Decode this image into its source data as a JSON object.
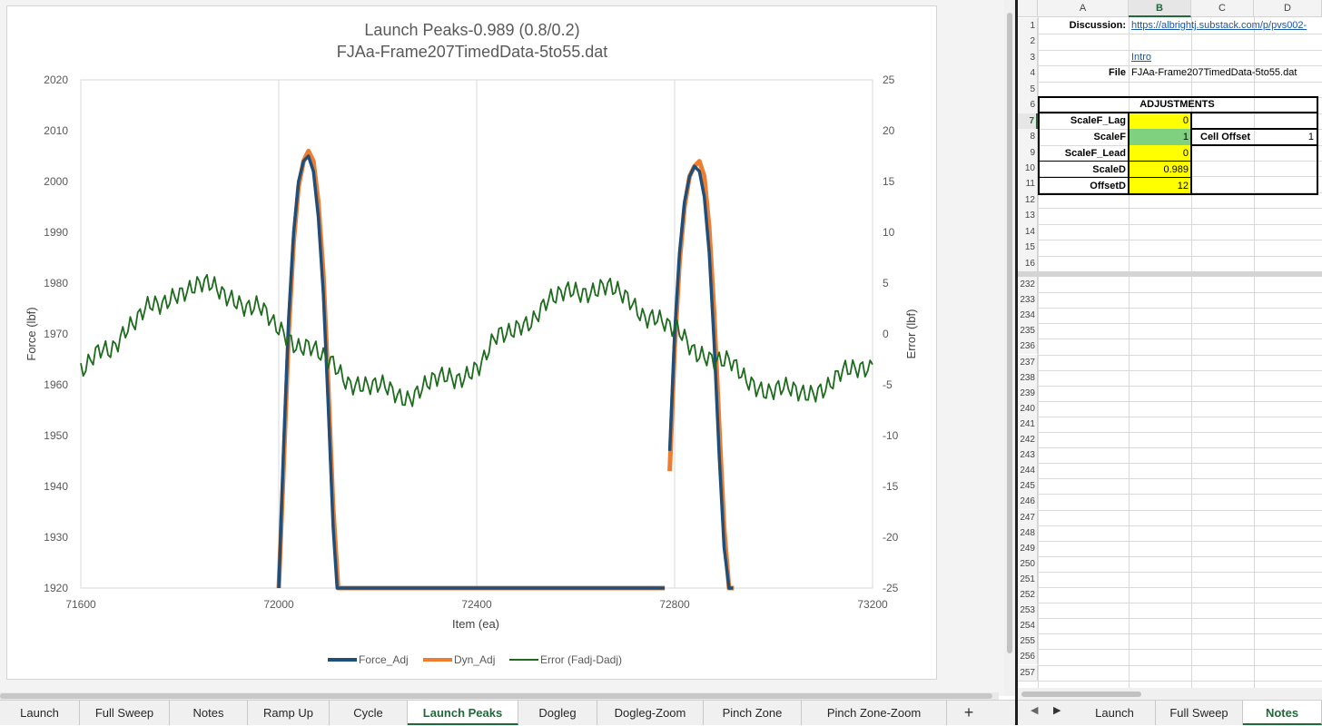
{
  "chart": {
    "title_line1": "Launch Peaks-0.989 (0.8/0.2)",
    "title_line2": "FJAa-Frame207TimedData-5to55.dat",
    "ylabel": "Force (lbf)",
    "y2label": "Error (lbf)",
    "xlabel": "Item (ea)",
    "legend": [
      "Force_Adj",
      "Dyn_Adj",
      "Error (Fadj-Dadj)"
    ],
    "colors": {
      "force": "#1f4e79",
      "dyn": "#ed7d31",
      "error": "#1e6b1e"
    }
  },
  "chart_data": {
    "type": "line",
    "title": "Launch Peaks-0.989 (0.8/0.2) FJAa-Frame207TimedData-5to55.dat",
    "xlabel": "Item (ea)",
    "ylabel": "Force (lbf)",
    "y2label": "Error (lbf)",
    "xlim": [
      71600,
      73200
    ],
    "ylim": [
      1920,
      2020
    ],
    "y2lim": [
      -25,
      25
    ],
    "x_ticks": [
      71600,
      72000,
      72400,
      72800,
      73200
    ],
    "y_ticks": [
      1920,
      1930,
      1940,
      1950,
      1960,
      1970,
      1980,
      1990,
      2000,
      2010,
      2020
    ],
    "y2_ticks": [
      -25,
      -20,
      -15,
      -10,
      -5,
      0,
      5,
      10,
      15,
      20,
      25
    ],
    "grid": "vertical",
    "legend_position": "bottom",
    "series": [
      {
        "name": "Force_Adj",
        "axis": "left",
        "x": [
          72000,
          72010,
          72020,
          72030,
          72040,
          72050,
          72060,
          72070,
          72080,
          72090,
          72100,
          72110,
          72118,
          72780,
          72790,
          72800,
          72810,
          72820,
          72830,
          72840,
          72850,
          72860,
          72870,
          72880,
          72890,
          72900,
          72910,
          72918
        ],
        "y": [
          1920,
          1948,
          1973,
          1990,
          2000,
          2004,
          2005,
          2002,
          1993,
          1978,
          1956,
          1932,
          1920,
          1920,
          1947,
          1970,
          1986,
          1996,
          2001,
          2003,
          2002,
          1997,
          1986,
          1968,
          1946,
          1928,
          1920,
          1920
        ]
      },
      {
        "name": "Dyn_Adj",
        "axis": "left",
        "x": [
          72000,
          72010,
          72020,
          72030,
          72040,
          72050,
          72060,
          72070,
          72080,
          72090,
          72100,
          72110,
          72120,
          72780,
          72790,
          72800,
          72810,
          72820,
          72830,
          72840,
          72850,
          72860,
          72870,
          72880,
          72890,
          72900,
          72910,
          72920
        ],
        "y": [
          1920,
          1944,
          1970,
          1988,
          1999,
          2004,
          2006,
          2004,
          1996,
          1982,
          1960,
          1936,
          1920,
          1920,
          1943,
          1967,
          1984,
          1995,
          2001,
          2003,
          2004,
          2001,
          1991,
          1974,
          1952,
          1932,
          1920,
          1920
        ]
      },
      {
        "name": "Error (Fadj-Dadj)",
        "axis": "right",
        "x": [
          71600,
          71650,
          71700,
          71750,
          71800,
          71850,
          71900,
          71950,
          72000,
          72050,
          72100,
          72150,
          72200,
          72250,
          72300,
          72350,
          72400,
          72450,
          72500,
          72550,
          72600,
          72650,
          72700,
          72750,
          72800,
          72850,
          72900,
          72950,
          73000,
          73050,
          73100,
          73150,
          73200
        ],
        "y": [
          -4,
          -1.5,
          1,
          2.5,
          4.5,
          4.5,
          4,
          2.5,
          0.5,
          -1,
          -3,
          -4.5,
          -5.5,
          -6,
          -5,
          -4.5,
          -3,
          -0.5,
          1.5,
          3,
          4.5,
          4.5,
          3.5,
          2,
          0,
          -1.5,
          -3,
          -4.5,
          -5.5,
          -6,
          -5,
          -4,
          -3
        ]
      }
    ]
  },
  "left_tabs": [
    "Launch",
    "Full Sweep",
    "Notes",
    "Ramp Up",
    "Cycle",
    "Launch Peaks",
    "Dogleg",
    "Dogleg-Zoom",
    "Pinch Zone",
    "Pinch Zone-Zoom"
  ],
  "left_tabs_plus": "+",
  "left_active_tab": "Launch Peaks",
  "sheet": {
    "columns": [
      "A",
      "B",
      "C",
      "D"
    ],
    "top_rows": [
      "1",
      "2",
      "3",
      "4",
      "5",
      "6",
      "7",
      "8",
      "9",
      "10",
      "11",
      "12",
      "13",
      "14",
      "15",
      "16"
    ],
    "bottom_rows": [
      "232",
      "233",
      "234",
      "235",
      "236",
      "237",
      "238",
      "239",
      "240",
      "241",
      "242",
      "243",
      "244",
      "245",
      "246",
      "247",
      "248",
      "249",
      "250",
      "251",
      "252",
      "253",
      "254",
      "255",
      "256",
      "257"
    ],
    "discussion_label": "Discussion:",
    "discussion_link": "https://albrightj.substack.com/p/pvs002-",
    "intro_link": "Intro",
    "file_label": "File",
    "file_value": "FJAa-Frame207TimedData-5to55.dat",
    "adjustments_title": "ADJUSTMENTS",
    "adjustments": [
      {
        "label": "ScaleF_Lag",
        "value": "0",
        "color": "yellow"
      },
      {
        "label": "ScaleF",
        "value": "1",
        "color": "green"
      },
      {
        "label": "ScaleF_Lead",
        "value": "0",
        "color": "yellow"
      },
      {
        "label": "ScaleD",
        "value": "0.989",
        "color": "yellow"
      },
      {
        "label": "OffsetD",
        "value": "12",
        "color": "yellow"
      }
    ],
    "cell_offset_label": "Cell Offset",
    "cell_offset_value": "1"
  },
  "right_tabs": [
    "Launch",
    "Full Sweep",
    "Notes"
  ],
  "right_active_tab": "Notes",
  "nav_prev": "◀",
  "nav_next": "▶"
}
